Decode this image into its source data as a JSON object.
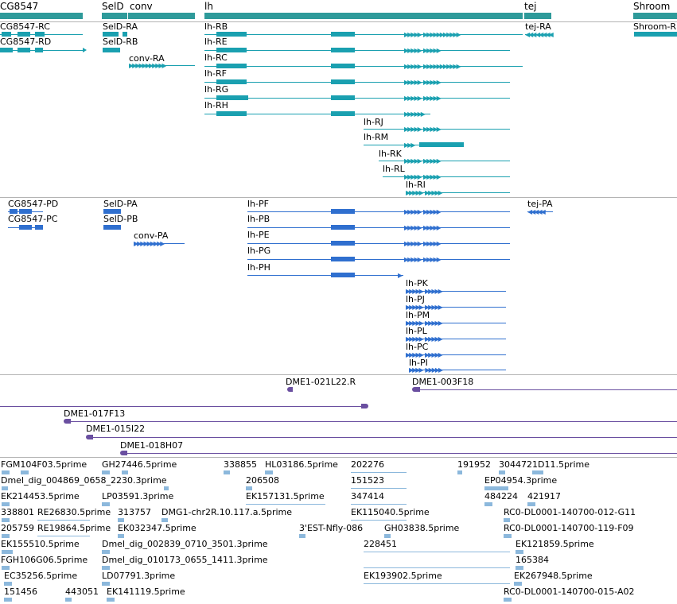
{
  "colors": {
    "gene": "#2e9a9a",
    "transcript_a": "#1aa0b0",
    "transcript_b": "#2f6fcf",
    "clone": "#6a4fa0",
    "est": "#8cb8dc"
  },
  "genes_track": {
    "items": [
      {
        "label": "CG8547"
      },
      {
        "label": "SelD"
      },
      {
        "label": "conv"
      },
      {
        "label": "lh"
      },
      {
        "label": "tej"
      },
      {
        "label": "Shroom"
      }
    ]
  },
  "transcripts_a": {
    "labels": [
      "CG8547-RC",
      "CG8547-RD",
      "SelD-RA",
      "SelD-RB",
      "conv-RA",
      "lh-RB",
      "lh-RE",
      "lh-RC",
      "lh-RF",
      "lh-RG",
      "lh-RH",
      "lh-RJ",
      "lh-RM",
      "lh-RK",
      "lh-RL",
      "lh-RI",
      "tej-RA",
      "Shroom-R"
    ]
  },
  "transcripts_b": {
    "labels": [
      "CG8547-PD",
      "CG8547-PC",
      "SelD-PA",
      "SelD-PB",
      "conv-PA",
      "lh-PF",
      "lh-PB",
      "lh-PE",
      "lh-PG",
      "lh-PH",
      "lh-PK",
      "lh-PJ",
      "lh-PM",
      "lh-PL",
      "lh-PC",
      "lh-PI",
      "tej-PA"
    ]
  },
  "clones_track": {
    "labels": [
      "DME1-021L22.R",
      "DME1-003F18",
      "DME1-017F13",
      "DME1-015I22",
      "DME1-018H07"
    ]
  },
  "est_track": {
    "labels": [
      "FGM104F03.5prime",
      "GH27446.5prime",
      "338855",
      "HL03186.5prime",
      "202276",
      "191952",
      "304472",
      "1D11.5prime",
      "Dmel_dig_004869_0658_2230.3prime",
      "206508",
      "151523",
      "EP04954.3prime",
      "EK214453.5prime",
      "LP03591.3prime",
      "EK157131.5prime",
      "347414",
      "484224",
      "421917",
      "338801",
      "RE26830.5prime",
      "313757",
      "DMG1-chr2R.10.117.a.5prime",
      "EK115040.5prime",
      "RC0-DL0001-140700-012-G11",
      "205759",
      "RE19864.5prime",
      "EK032347.5prime",
      "3'EST-Nfly-086",
      "GH03838.5prime",
      "RC0-DL0001-140700-119-F09",
      "EK155510.5prime",
      "Dmel_dig_002839_0710_3501.3prime",
      "228451",
      "EK121859.5prime",
      "FGH106G06.5prime",
      "Dmel_dig_010173_0655_1411.3prime",
      "165384",
      "EC35256.5prime",
      "LD07791.3prime",
      "EK193902.5prime",
      "EK267948.5prime",
      "151456",
      "443051",
      "EK141119.5prime",
      "RC0-DL0001-140700-015-A02"
    ]
  }
}
